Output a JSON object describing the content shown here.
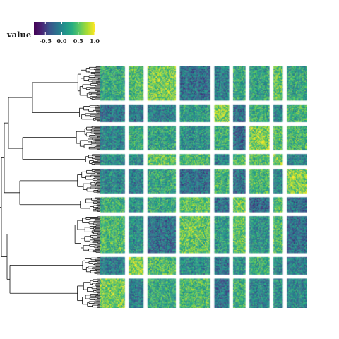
{
  "chart_data": {
    "type": "heatmap",
    "title": "",
    "xlabel": "",
    "ylabel": "",
    "legend": {
      "title": "value",
      "placement": "top-left",
      "ticks": [
        "-0.5",
        "0.0",
        "0.5",
        "1.0"
      ],
      "tick_values": [
        -0.5,
        0.0,
        0.5,
        1.0
      ],
      "range": [
        -0.85,
        1.0
      ],
      "colormap": "viridis"
    },
    "row_clusters": 9,
    "column_clusters": 9,
    "cluster_sizes": [
      37,
      19,
      26,
      12,
      26,
      16,
      40,
      19,
      32
    ],
    "dendrogram": "hierarchical clustering tree on rows (left)",
    "diagonal_value": 1.0,
    "colors": {
      "low": "#440154",
      "mid": "#21908d",
      "high": "#fde725"
    }
  }
}
